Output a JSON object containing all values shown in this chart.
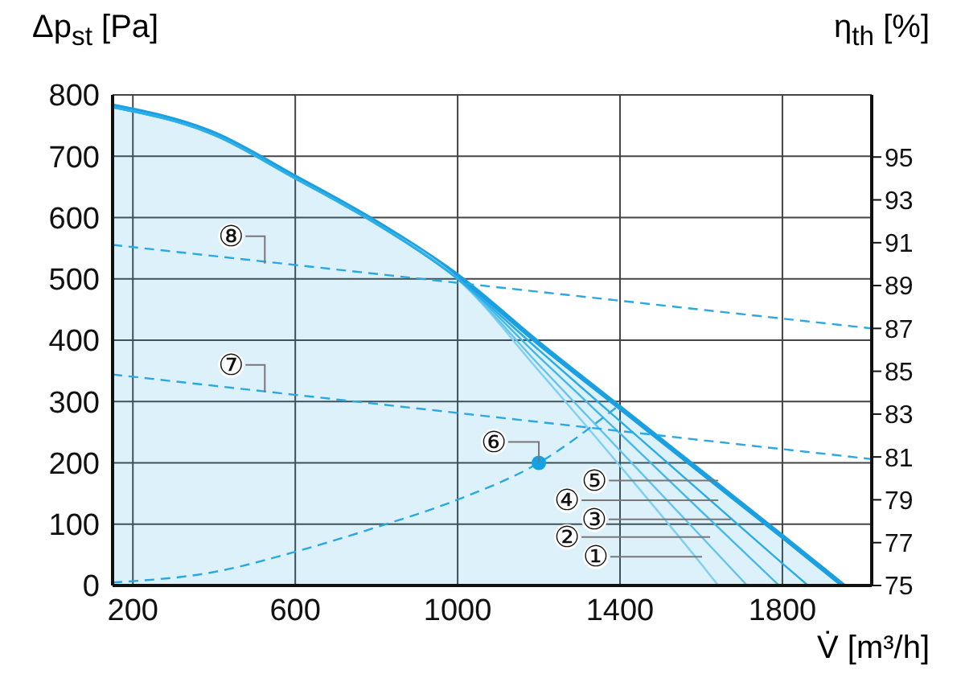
{
  "chart_data": {
    "type": "line",
    "xlabel": "V̇ [m³/h]",
    "ylabel": "Δp$_{st}$ [Pa]",
    "y2label": "η$_{th}$ [%]",
    "xlim": [
      150,
      2020
    ],
    "xticks": [
      200,
      600,
      1000,
      1400,
      1800
    ],
    "ylim": [
      0,
      800
    ],
    "yticks": [
      0,
      100,
      200,
      300,
      400,
      500,
      600,
      700,
      800
    ],
    "y2lim": [
      75,
      97.9
    ],
    "y2ticks": [
      75,
      77,
      79,
      81,
      83,
      85,
      87,
      89,
      91,
      93,
      95
    ],
    "grid": true,
    "legend": false,
    "marker": "none",
    "line_style": "solid",
    "series": [
      {
        "color": "#7fd0f2",
        "x": [
          150,
          400,
          600,
          800,
          1000,
          1200,
          1400,
          1600,
          1642
        ],
        "values": [
          780,
          735,
          664,
          590,
          500,
          350,
          195,
          35,
          0
        ]
      },
      {
        "color": "#62c4ee",
        "x": [
          150,
          400,
          600,
          800,
          1000,
          1200,
          1400,
          1600,
          1713
        ],
        "values": [
          780,
          735,
          664,
          590,
          500,
          360,
          220,
          80,
          0
        ]
      },
      {
        "color": "#45b8ea",
        "x": [
          150,
          400,
          600,
          800,
          1000,
          1200,
          1400,
          1600,
          1792
        ],
        "values": [
          780,
          735,
          664,
          590,
          500,
          373,
          248,
          121,
          0
        ]
      },
      {
        "color": "#2aade6",
        "x": [
          150,
          400,
          600,
          800,
          1000,
          1200,
          1400,
          1600,
          1800,
          1863
        ],
        "values": [
          780,
          735,
          664,
          590,
          500,
          384,
          268,
          152,
          36,
          0
        ]
      },
      {
        "type": "area",
        "color": "#1aa0e0",
        "x": [
          150,
          400,
          600,
          800,
          1000,
          1200,
          1400,
          1600,
          1800,
          1950
        ],
        "values": [
          782,
          737,
          666,
          592,
          505,
          395,
          290,
          185,
          80,
          0
        ]
      },
      {
        "color": "#2aa8e2",
        "line_style": "dashed",
        "x": [
          150,
          400,
          600,
          800,
          1000,
          1200,
          1390
        ],
        "values": [
          5,
          22,
          55,
          95,
          140,
          200,
          290
        ]
      },
      {
        "color": "#2aa8e2",
        "line_style": "dashed",
        "axis": "y2",
        "x": [
          150,
          2020
        ],
        "values": [
          84.85,
          80.9
        ]
      },
      {
        "color": "#2aa8e2",
        "line_style": "dashed",
        "axis": "y2",
        "x": [
          150,
          2020
        ],
        "values": [
          90.9,
          87.0
        ]
      },
      {
        "type": "scatter",
        "color": "#12a3e6",
        "marker": "circle",
        "x": [
          1200
        ],
        "values": [
          200
        ]
      }
    ],
    "annotations": [
      {
        "text": "①",
        "x": 1602,
        "y": 47
      },
      {
        "text": "②",
        "x": 1622,
        "y": 79
      },
      {
        "text": "③",
        "x": 1673,
        "y": 108
      },
      {
        "text": "④",
        "x": 1642,
        "y": 139
      },
      {
        "text": "⑤",
        "x": 1642,
        "y": 171
      },
      {
        "text": "⑥",
        "x": 1200,
        "y": 200
      },
      {
        "text": "⑦",
        "x": 525,
        "y": 315
      },
      {
        "text": "⑧",
        "x": 525,
        "y": 525
      }
    ]
  }
}
